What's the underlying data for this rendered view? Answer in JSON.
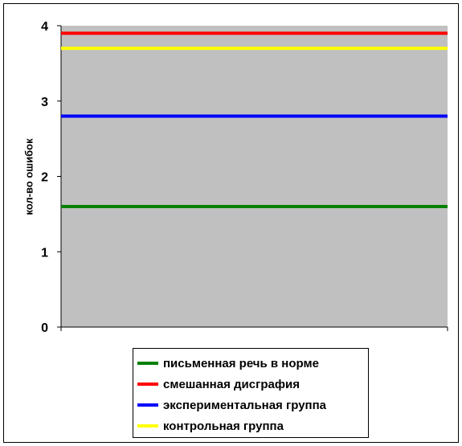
{
  "chart_data": {
    "type": "line",
    "title": "",
    "xlabel": "",
    "ylabel": "кол-во ошибок",
    "ylim": [
      0,
      4
    ],
    "yticks": [
      0,
      1,
      2,
      3,
      4
    ],
    "ytick_labels": [
      "0",
      "1",
      "2",
      "3",
      "4"
    ],
    "grid": false,
    "plot_background": "#c0c0c0",
    "legend_position": "bottom",
    "series": [
      {
        "name": "письменная речь в норме",
        "value": 1.6,
        "color": "#008000"
      },
      {
        "name": "смешанная дисграфия",
        "value": 3.9,
        "color": "#ff0000"
      },
      {
        "name": "экспериментальная группа",
        "value": 2.8,
        "color": "#0000ff"
      },
      {
        "name": "контрольная группа",
        "value": 3.7,
        "color": "#ffff00"
      }
    ]
  }
}
